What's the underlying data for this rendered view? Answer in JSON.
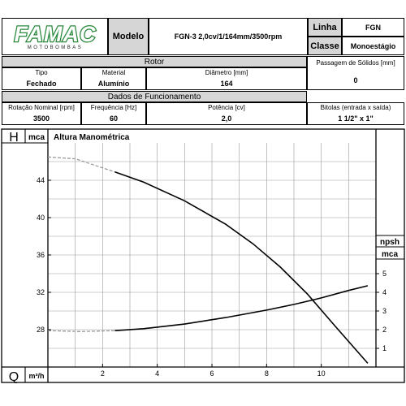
{
  "brand": {
    "logo_text": "FAMAC",
    "logo_sub": "MOTOBOMBAS"
  },
  "header": {
    "modelo_label": "Modelo",
    "modelo_value": "FGN-3 2,0cv/1/164mm/3500rpm",
    "linha_label": "Linha",
    "linha_value": "FGN",
    "classe_label": "Classe",
    "classe_value": "Monoestágio"
  },
  "rotor": {
    "title": "Rotor",
    "tipo_label": "Tipo",
    "tipo_value": "Fechado",
    "material_label": "Material",
    "material_value": "Alumínio",
    "diametro_label": "Diâmetro [mm]",
    "diametro_value": "164",
    "passagem_label": "Passagem de Sólidos [mm]",
    "passagem_value": "0"
  },
  "funcionamento": {
    "title": "Dados de Funcionamento",
    "rotacao_label": "Rotação Nominal [rpm]",
    "rotacao_value": "3500",
    "frequencia_label": "Frequência [Hz]",
    "frequencia_value": "60",
    "potencia_label": "Potência [cv]",
    "potencia_value": "2,0",
    "bitolas_label": "Bitolas (entrada x saída)",
    "bitolas_value": "1 1/2\" x 1\""
  },
  "chart_data": {
    "type": "line",
    "title": "Altura Manométrica",
    "y_axis_letter": "H",
    "y_unit": "mca",
    "x_axis_letter": "Q",
    "x_unit": "m³/h",
    "y2_label": "npsh",
    "y2_unit": "mca",
    "xlim": [
      0,
      12
    ],
    "ylim": [
      24,
      48
    ],
    "y2lim": [
      0,
      5
    ],
    "x_ticks": [
      "2",
      "4",
      "6",
      "8",
      "10"
    ],
    "y_ticks": [
      "28",
      "32",
      "36",
      "40",
      "44"
    ],
    "y2_ticks": [
      "1",
      "2",
      "3",
      "4",
      "5"
    ],
    "grid": true,
    "series": [
      {
        "axis": "left",
        "points": [
          [
            2.45,
            44.9
          ],
          [
            3.5,
            43.8
          ],
          [
            5,
            41.8
          ],
          [
            6.5,
            39.3
          ],
          [
            7.5,
            37.2
          ],
          [
            8.5,
            34.7
          ],
          [
            9.5,
            31.8
          ],
          [
            10.5,
            28.4
          ],
          [
            11.7,
            24.4
          ]
        ],
        "extrapolated": [
          [
            0,
            46.5
          ],
          [
            1,
            46.3
          ],
          [
            2.45,
            44.9
          ]
        ]
      },
      {
        "axis": "right",
        "points": [
          [
            2.45,
            1.95
          ],
          [
            3.5,
            2.05
          ],
          [
            5,
            2.3
          ],
          [
            6.5,
            2.65
          ],
          [
            8,
            3.05
          ],
          [
            9,
            3.35
          ],
          [
            10,
            3.7
          ],
          [
            11,
            4.1
          ],
          [
            11.7,
            4.35
          ]
        ],
        "extrapolated": [
          [
            0,
            1.95
          ],
          [
            1.2,
            1.9
          ],
          [
            2.45,
            1.95
          ]
        ]
      }
    ]
  }
}
